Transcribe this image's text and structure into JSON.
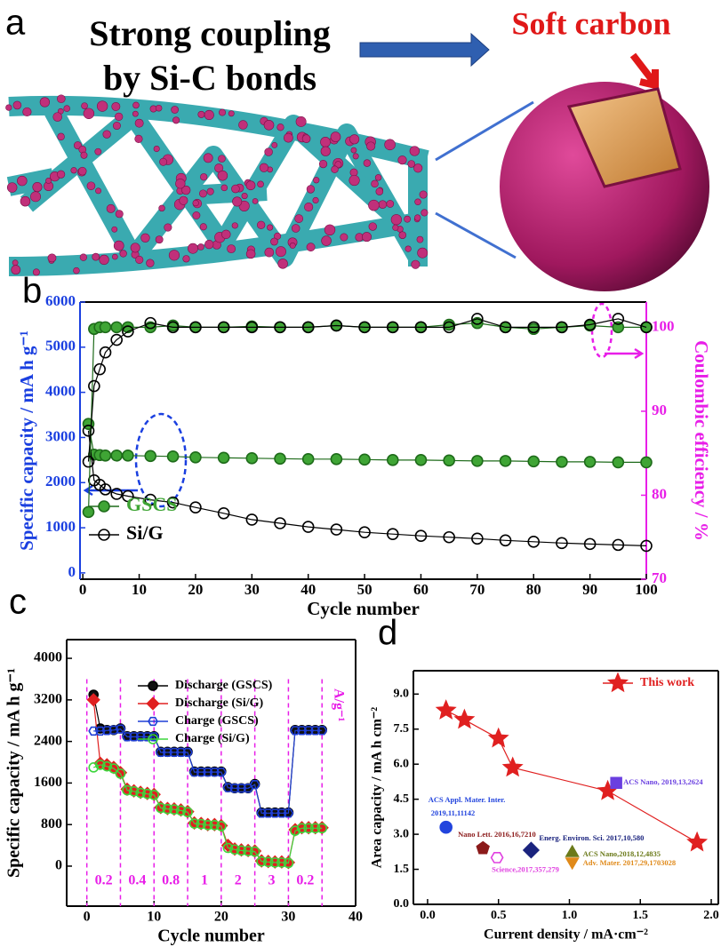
{
  "panel_a": {
    "label": "a",
    "title_lines": [
      "Strong coupling",
      "by Si-C bonds"
    ],
    "callout": "Soft carbon"
  },
  "chart_data": [
    {
      "panel": "b",
      "type": "line",
      "x_label": "Cycle number",
      "y_label": "Specific capacity / mA h g⁻¹",
      "y2_label": "Coulombic efficiency / %",
      "y_color": "#1a3fe0",
      "y2_color": "#e81ee8",
      "legend": "lower left",
      "x": [
        1,
        2,
        3,
        4,
        6,
        8,
        12,
        16,
        20,
        25,
        30,
        35,
        40,
        45,
        50,
        55,
        60,
        65,
        70,
        75,
        80,
        85,
        90,
        95,
        100
      ],
      "xlim": [
        -0.5,
        100
      ],
      "xticks": [
        0,
        10,
        20,
        30,
        40,
        50,
        60,
        70,
        80,
        90,
        100
      ],
      "ylim": [
        -140,
        6000
      ],
      "yticks": [
        0,
        1000,
        2000,
        3000,
        4000,
        5000,
        6000
      ],
      "y2lim": [
        70,
        103
      ],
      "y2ticks": [
        70,
        80,
        90,
        100
      ],
      "series": [
        {
          "name": "GSCS",
          "color": "#1e6b1a",
          "marker": "circle",
          "marker_fill": "#3fa535",
          "values": [
            3300,
            2620,
            2610,
            2600,
            2600,
            2600,
            2590,
            2580,
            2560,
            2550,
            2540,
            2530,
            2520,
            2520,
            2510,
            2500,
            2500,
            2490,
            2480,
            2480,
            2470,
            2460,
            2460,
            2450,
            2450
          ]
        },
        {
          "name": "Si/G",
          "color": "#000000",
          "marker": "circle",
          "marker_fill": "none",
          "values": [
            3150,
            2050,
            1950,
            1850,
            1750,
            1700,
            1620,
            1560,
            1450,
            1320,
            1180,
            1100,
            1020,
            960,
            900,
            860,
            820,
            790,
            760,
            720,
            690,
            660,
            640,
            620,
            600
          ]
        },
        {
          "axis": "y2",
          "color": "#1e6b1a",
          "marker": "circle",
          "marker_fill": "#3fa535",
          "values": [
            78,
            99.8,
            100,
            100,
            100,
            100,
            100,
            100.2,
            100,
            100,
            100.1,
            100,
            100,
            100.2,
            100,
            100,
            100,
            100.3,
            100.5,
            100,
            99.8,
            100,
            100.2,
            100,
            100
          ]
        },
        {
          "axis": "y2",
          "color": "#000000",
          "marker": "circle",
          "marker_fill": "none",
          "values": [
            84,
            93,
            95,
            97,
            98.5,
            99.5,
            100.5,
            100,
            100,
            100,
            100,
            100,
            100,
            100.2,
            100,
            100,
            100,
            100,
            101,
            100,
            100,
            100,
            100.3,
            101,
            100
          ]
        }
      ]
    },
    {
      "panel": "c",
      "type": "line",
      "x_label": "Cycle number",
      "y_label": "Specific capacity / mA h g⁻¹",
      "legend": "upper right",
      "x": [
        1,
        2,
        3,
        4,
        5,
        6,
        7,
        8,
        9,
        10,
        11,
        12,
        13,
        14,
        15,
        16,
        17,
        18,
        19,
        20,
        21,
        22,
        23,
        24,
        25,
        26,
        27,
        28,
        29,
        30,
        31,
        32,
        33,
        34,
        35
      ],
      "xlim": [
        -3,
        40
      ],
      "xticks": [
        0,
        10,
        20,
        30,
        40
      ],
      "ylim": [
        -770,
        4360
      ],
      "yticks": [
        0,
        800,
        1600,
        2400,
        3200,
        4000
      ],
      "rate_lines": [
        0,
        5,
        10,
        15,
        20,
        25,
        30,
        35
      ],
      "rate_labels": [
        "0.2",
        "0.4",
        "0.8",
        "1",
        "2",
        "3",
        "0.2"
      ],
      "rate_unit": "A/g⁻¹",
      "rate_color": "#e81ee8",
      "series": [
        {
          "name": "Discharge (GSCS)",
          "color": "#000000",
          "marker": "circle",
          "marker_fill": "#111111",
          "values": [
            3300,
            2650,
            2620,
            2620,
            2650,
            2500,
            2500,
            2500,
            2500,
            2500,
            2200,
            2200,
            2200,
            2200,
            2200,
            1820,
            1820,
            1820,
            1820,
            1820,
            1520,
            1500,
            1500,
            1500,
            1580,
            1030,
            1030,
            1030,
            1030,
            1030,
            2620,
            2620,
            2620,
            2620,
            2620
          ]
        },
        {
          "name": "Discharge (Si/G)",
          "color": "#e02020",
          "marker": "diamond",
          "marker_fill": "#e02020",
          "values": [
            3200,
            1980,
            1950,
            1900,
            1800,
            1480,
            1450,
            1420,
            1400,
            1380,
            1130,
            1110,
            1100,
            1080,
            1050,
            830,
            820,
            800,
            800,
            780,
            400,
            330,
            310,
            300,
            290,
            100,
            90,
            80,
            80,
            70,
            700,
            740,
            740,
            740,
            740
          ]
        },
        {
          "name": "Charge (GSCS)",
          "color": "#1f3fd6",
          "marker": "hexagon",
          "marker_fill": "none",
          "values": [
            2600,
            2600,
            2610,
            2620,
            2640,
            2490,
            2490,
            2490,
            2490,
            2490,
            2190,
            2190,
            2190,
            2190,
            2190,
            1810,
            1810,
            1810,
            1810,
            1810,
            1510,
            1500,
            1500,
            1500,
            1570,
            1020,
            1020,
            1020,
            1020,
            1020,
            2610,
            2610,
            2610,
            2610,
            2610
          ]
        },
        {
          "name": "Charge (Si/G)",
          "color": "#3dd63d",
          "marker": "circle",
          "marker_fill": "none",
          "values": [
            1900,
            1950,
            1920,
            1880,
            1780,
            1460,
            1440,
            1410,
            1390,
            1370,
            1120,
            1100,
            1090,
            1070,
            1040,
            820,
            810,
            790,
            790,
            770,
            350,
            320,
            300,
            290,
            280,
            90,
            80,
            70,
            70,
            60,
            680,
            730,
            730,
            730,
            730
          ]
        }
      ]
    },
    {
      "panel": "d",
      "type": "scatter",
      "x_label": "Current density / mA·cm⁻²",
      "y_label": "Area capacity / mA h cm⁻²",
      "legend": "upper right",
      "xlim": [
        -0.1,
        2.05
      ],
      "xticks": [
        {
          "value": 0,
          "label": "0.0"
        },
        {
          "value": 0.5,
          "label": "0.5"
        },
        {
          "value": 1,
          "label": "1.0"
        },
        {
          "value": 1.5,
          "label": "1.5"
        },
        {
          "value": 2,
          "label": "2.0"
        }
      ],
      "ylim": [
        0,
        10
      ],
      "yticks": [
        {
          "value": 0,
          "label": "0.0"
        },
        {
          "value": 1.5,
          "label": "1.5"
        },
        {
          "value": 3,
          "label": "3.0"
        },
        {
          "value": 4.5,
          "label": "4.5"
        },
        {
          "value": 6,
          "label": "6.0"
        },
        {
          "value": 7.5,
          "label": "7.5"
        },
        {
          "value": 9,
          "label": "9.0"
        }
      ],
      "series": [
        {
          "name": "This work",
          "color": "#e02020",
          "marker": "star",
          "marker_fill": "#e02020",
          "x": [
            0.13,
            0.26,
            0.5,
            0.6,
            1.27,
            1.9
          ],
          "values": [
            8.3,
            7.9,
            7.1,
            5.85,
            4.85,
            2.65
          ]
        }
      ],
      "references": [
        {
          "label": [
            "ACS Appl. Mater. Inter.",
            "2019,11,11142"
          ],
          "color": "#2244dd",
          "marker": "circle",
          "x": 0.13,
          "y": 3.3
        },
        {
          "label": [
            "Nano Lett. 2016,16,7210"
          ],
          "color": "#8b1a1a",
          "marker": "pentagon",
          "x": 0.39,
          "y": 2.4
        },
        {
          "label": [
            "Energ. Environ. Sci. 2017,10,580"
          ],
          "color": "#1a237e",
          "marker": "diamond",
          "x": 0.73,
          "y": 2.32
        },
        {
          "label": [
            "Science,2017,357,279"
          ],
          "color": "#e040e0",
          "marker": "hexagon",
          "x": 0.49,
          "y": 2.0
        },
        {
          "label": [
            "ACS Nano,2018,12,4835"
          ],
          "color": "#6b7a1a",
          "marker": "triangle",
          "x": 1.02,
          "y": 2.2
        },
        {
          "label": [
            "Adv. Mater. 2017,29,1703028"
          ],
          "color": "#e08a1a",
          "marker": "triangle-down",
          "x": 1.02,
          "y": 1.83
        },
        {
          "label": [
            "ACS Nano, 2019,13,2624"
          ],
          "color": "#6a3fe0",
          "marker": "square",
          "x": 1.33,
          "y": 5.2
        }
      ]
    }
  ]
}
